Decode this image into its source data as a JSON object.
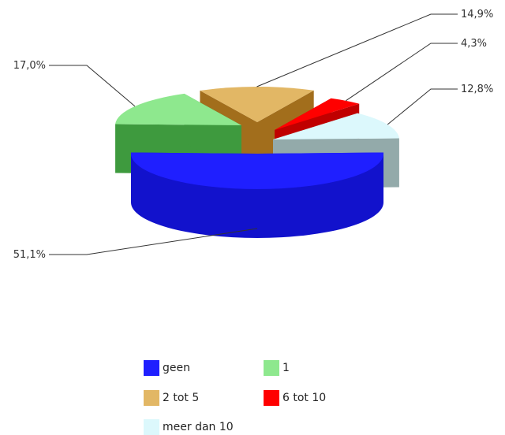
{
  "chart_data": {
    "type": "pie",
    "style": "3d-exploded",
    "categories": [
      "geen",
      "1",
      "2 tot 5",
      "6 tot 10",
      "meer dan 10"
    ],
    "values": [
      51.1,
      17.0,
      14.9,
      4.3,
      12.8
    ],
    "labels": [
      "51,1%",
      "17,0%",
      "14,9%",
      "4,3%",
      "12,8%"
    ],
    "colors": [
      "#1f1fff",
      "#8ee88e",
      "#e2b765",
      "#ff0000",
      "#dcf8fc"
    ],
    "side_colors": [
      "#1212cc",
      "#3e9a3e",
      "#a26e1c",
      "#c00000",
      "#93aaaa"
    ],
    "legend_position": "bottom"
  }
}
